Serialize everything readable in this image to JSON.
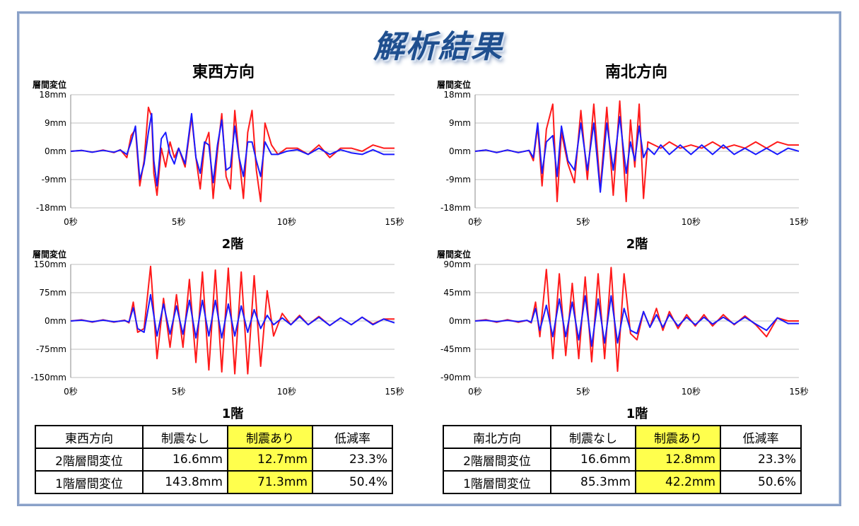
{
  "main_title": "解析結果",
  "panels": [
    {
      "direction": "東西方向",
      "table": {
        "headers": [
          "東西方向",
          "制震なし",
          "制震あり",
          "低減率"
        ],
        "rows": [
          [
            "2階層間変位",
            "16.6mm",
            "12.7mm",
            "23.3%"
          ],
          [
            "1階層間変位",
            "143.8mm",
            "71.3mm",
            "50.4%"
          ]
        ]
      }
    },
    {
      "direction": "南北方向",
      "table": {
        "headers": [
          "南北方向",
          "制震なし",
          "制震あり",
          "低減率"
        ],
        "rows": [
          [
            "2階層間変位",
            "16.6mm",
            "12.8mm",
            "23.3%"
          ],
          [
            "1階層間変位",
            "85.3mm",
            "42.2mm",
            "50.6%"
          ]
        ]
      }
    }
  ],
  "colors": {
    "no_damper": "#ff1a1a",
    "with_damper": "#1a1aff",
    "highlight": "#ffff4d",
    "title": "#1f4f8f"
  },
  "chart_data": [
    {
      "id": "ew-2f",
      "type": "line",
      "title": "2階",
      "ylabel": "層間変位",
      "ylim": [
        -18,
        18
      ],
      "xlim": [
        0,
        15
      ],
      "grid": true,
      "legend": "none",
      "yticks": [
        "18mm",
        "9mm",
        "0mm",
        "-9mm",
        "-18mm"
      ],
      "xticks": [
        "0秒",
        "5秒",
        "10秒",
        "15秒"
      ],
      "series": [
        {
          "color": "red",
          "x": [
            0,
            0.5,
            1,
            1.5,
            2,
            2.3,
            2.6,
            2.8,
            3.0,
            3.2,
            3.4,
            3.6,
            3.75,
            3.85,
            4.0,
            4.2,
            4.4,
            4.6,
            4.8,
            5.0,
            5.3,
            5.6,
            5.8,
            6.0,
            6.2,
            6.4,
            6.6,
            6.8,
            7.0,
            7.2,
            7.4,
            7.6,
            7.8,
            8.0,
            8.2,
            8.4,
            8.6,
            8.8,
            9.0,
            9.3,
            9.6,
            10,
            10.5,
            11,
            11.5,
            12,
            12.5,
            13,
            13.5,
            14,
            14.5,
            15
          ],
          "y": [
            0,
            0.3,
            -0.3,
            0.4,
            -0.4,
            0.5,
            -2,
            5,
            7,
            -11,
            -3,
            14,
            11,
            -7,
            -14,
            1,
            -5,
            3,
            -2,
            1,
            -5,
            11,
            -2,
            -12,
            2,
            6,
            -15,
            0,
            12,
            -8,
            -12,
            13,
            -2,
            -15,
            6,
            13,
            -6,
            -16,
            9,
            2,
            -1,
            1,
            1,
            -1,
            2,
            -2,
            1,
            1,
            0,
            2,
            1,
            1
          ]
        },
        {
          "color": "blue",
          "x": [
            0,
            0.5,
            1,
            1.5,
            2,
            2.3,
            2.6,
            2.8,
            3.0,
            3.2,
            3.4,
            3.6,
            3.75,
            3.85,
            4.0,
            4.2,
            4.4,
            4.6,
            4.8,
            5.0,
            5.3,
            5.6,
            5.8,
            6.0,
            6.2,
            6.4,
            6.6,
            6.8,
            7.0,
            7.2,
            7.4,
            7.6,
            7.8,
            8.0,
            8.2,
            8.4,
            8.6,
            8.8,
            9.0,
            9.3,
            9.6,
            10,
            10.5,
            11,
            11.5,
            12,
            12.5,
            13,
            13.5,
            14,
            14.5,
            15
          ],
          "y": [
            0,
            0.3,
            -0.3,
            0.3,
            -0.3,
            0.4,
            -1,
            3,
            8,
            -9,
            -4,
            6,
            12,
            -3,
            -11,
            4,
            6,
            -1,
            -4,
            1,
            -4,
            12,
            -2,
            -7,
            3,
            2,
            -10,
            2,
            10,
            -6,
            -5,
            8,
            -2,
            -8,
            3,
            3,
            -3,
            -8,
            3,
            -1,
            -1,
            0,
            0.5,
            -1,
            1,
            -1,
            0.5,
            -0.5,
            -1,
            0.5,
            -1,
            -1
          ]
        }
      ]
    },
    {
      "id": "ew-1f",
      "type": "line",
      "title": "1階",
      "ylabel": "層間変位",
      "ylim": [
        -150,
        150
      ],
      "xlim": [
        0,
        15
      ],
      "grid": true,
      "legend": "none",
      "yticks": [
        "150mm",
        "75mm",
        "0mm",
        "-75mm",
        "-150mm"
      ],
      "xticks": [
        "0秒",
        "5秒",
        "10秒",
        "15秒"
      ],
      "series": [
        {
          "color": "red",
          "x": [
            0,
            0.5,
            1,
            1.5,
            2,
            2.5,
            2.7,
            2.9,
            3.1,
            3.4,
            3.7,
            4.0,
            4.3,
            4.6,
            4.9,
            5.2,
            5.5,
            5.8,
            6.1,
            6.4,
            6.7,
            7.0,
            7.3,
            7.6,
            7.9,
            8.2,
            8.5,
            8.8,
            9.1,
            9.4,
            9.8,
            10.2,
            10.6,
            11,
            11.5,
            12,
            12.5,
            13,
            13.5,
            14,
            14.5,
            15
          ],
          "y": [
            0,
            3,
            -3,
            3,
            -3,
            2,
            -5,
            50,
            -30,
            -20,
            145,
            -100,
            60,
            -70,
            70,
            -70,
            110,
            -110,
            130,
            -130,
            135,
            -135,
            140,
            -140,
            130,
            -140,
            120,
            -120,
            80,
            -40,
            20,
            -10,
            15,
            -10,
            12,
            -12,
            8,
            -10,
            10,
            -8,
            5,
            5
          ]
        },
        {
          "color": "blue",
          "x": [
            0,
            0.5,
            1,
            1.5,
            2,
            2.5,
            2.7,
            2.9,
            3.1,
            3.4,
            3.7,
            4.0,
            4.3,
            4.6,
            4.9,
            5.2,
            5.5,
            5.8,
            6.1,
            6.4,
            6.7,
            7.0,
            7.3,
            7.6,
            7.9,
            8.2,
            8.5,
            8.8,
            9.1,
            9.4,
            9.8,
            10.2,
            10.6,
            11,
            11.5,
            12,
            12.5,
            13,
            13.5,
            14,
            14.5,
            15
          ],
          "y": [
            0,
            2,
            -2,
            2,
            -2,
            1,
            -3,
            35,
            -20,
            -30,
            70,
            -40,
            45,
            -35,
            40,
            -35,
            55,
            -45,
            55,
            -40,
            55,
            -45,
            45,
            -40,
            40,
            -30,
            30,
            -20,
            15,
            -10,
            8,
            -10,
            12,
            -10,
            10,
            -12,
            8,
            -10,
            10,
            -10,
            5,
            -5
          ]
        }
      ]
    },
    {
      "id": "ns-2f",
      "type": "line",
      "title": "2階",
      "ylabel": "層間変位",
      "ylim": [
        -18,
        18
      ],
      "xlim": [
        0,
        15
      ],
      "grid": true,
      "legend": "none",
      "yticks": [
        "18mm",
        "9mm",
        "0mm",
        "-9mm",
        "-18mm"
      ],
      "xticks": [
        "0秒",
        "5秒",
        "10秒",
        "15秒"
      ],
      "series": [
        {
          "color": "red",
          "x": [
            0,
            0.5,
            1,
            1.5,
            2,
            2.5,
            2.7,
            2.9,
            3.1,
            3.3,
            3.6,
            3.8,
            4.0,
            4.3,
            4.6,
            4.9,
            5.2,
            5.5,
            5.8,
            6.1,
            6.4,
            6.7,
            7.0,
            7.2,
            7.4,
            7.6,
            7.8,
            8.0,
            8.3,
            8.6,
            9,
            9.5,
            10,
            10.5,
            11,
            11.5,
            12,
            12.5,
            13,
            13.5,
            14,
            14.5,
            15
          ],
          "y": [
            0,
            0.4,
            -0.4,
            0.4,
            -0.4,
            0.3,
            -3,
            8,
            -11,
            7,
            15,
            -16,
            6,
            -4,
            -10,
            13,
            -9,
            15,
            -12,
            14,
            -14,
            16,
            -16,
            10,
            -5,
            15,
            -15,
            3,
            2,
            1,
            3,
            1,
            2,
            1,
            3,
            1,
            2,
            1,
            3,
            1,
            3,
            2,
            2
          ]
        },
        {
          "color": "blue",
          "x": [
            0,
            0.5,
            1,
            1.5,
            2,
            2.5,
            2.7,
            2.9,
            3.1,
            3.3,
            3.6,
            3.8,
            4.0,
            4.3,
            4.6,
            4.9,
            5.2,
            5.5,
            5.8,
            6.1,
            6.4,
            6.7,
            7.0,
            7.2,
            7.4,
            7.6,
            7.8,
            8.0,
            8.3,
            8.6,
            9,
            9.5,
            10,
            10.5,
            11,
            11.5,
            12,
            12.5,
            13,
            13.5,
            14,
            14.5,
            15
          ],
          "y": [
            0,
            0.4,
            -0.4,
            0.4,
            -0.4,
            0.3,
            -2,
            9,
            -7,
            3,
            5,
            -8,
            8,
            -3,
            -6,
            9,
            -6,
            9,
            -13,
            9,
            -6,
            11,
            -7,
            3,
            -3,
            8,
            -2,
            1,
            -1,
            2,
            -1,
            2,
            -1,
            2,
            -1,
            2,
            -1,
            1,
            -1,
            1,
            -1,
            1,
            0
          ]
        }
      ]
    },
    {
      "id": "ns-1f",
      "type": "line",
      "title": "1階",
      "ylabel": "層間変位",
      "ylim": [
        -90,
        90
      ],
      "xlim": [
        0,
        15
      ],
      "grid": true,
      "legend": "none",
      "yticks": [
        "90mm",
        "45mm",
        "0mm",
        "-45mm",
        "-90mm"
      ],
      "xticks": [
        "0秒",
        "5秒",
        "10秒",
        "15秒"
      ],
      "series": [
        {
          "color": "red",
          "x": [
            0,
            0.5,
            1,
            1.5,
            2,
            2.4,
            2.6,
            2.8,
            3.0,
            3.3,
            3.6,
            3.9,
            4.2,
            4.5,
            4.8,
            5.1,
            5.4,
            5.7,
            6.0,
            6.3,
            6.6,
            6.9,
            7.2,
            7.5,
            7.8,
            8.1,
            8.4,
            8.7,
            9.0,
            9.4,
            9.8,
            10.2,
            10.6,
            11,
            11.5,
            12,
            12.5,
            13,
            13.5,
            14,
            14.5,
            15
          ],
          "y": [
            0,
            2,
            -2,
            2,
            -2,
            1,
            -3,
            30,
            -25,
            82,
            -60,
            75,
            -55,
            60,
            -60,
            70,
            -65,
            75,
            -60,
            85,
            -80,
            75,
            -20,
            -30,
            15,
            -10,
            20,
            -15,
            15,
            -12,
            10,
            -8,
            10,
            -8,
            10,
            -6,
            8,
            -6,
            -25,
            5,
            0,
            0
          ]
        },
        {
          "color": "blue",
          "x": [
            0,
            0.5,
            1,
            1.5,
            2,
            2.4,
            2.6,
            2.8,
            3.0,
            3.3,
            3.6,
            3.9,
            4.2,
            4.5,
            4.8,
            5.1,
            5.4,
            5.7,
            6.0,
            6.3,
            6.6,
            6.9,
            7.2,
            7.5,
            7.8,
            8.1,
            8.4,
            8.7,
            9.0,
            9.4,
            9.8,
            10.2,
            10.6,
            11,
            11.5,
            12,
            12.5,
            13,
            13.5,
            14,
            14.5,
            15
          ],
          "y": [
            0,
            1,
            -1,
            1,
            -1,
            1,
            -2,
            20,
            -15,
            25,
            -25,
            35,
            -25,
            30,
            -30,
            40,
            -40,
            35,
            -35,
            40,
            -35,
            20,
            -15,
            -20,
            15,
            -10,
            10,
            -10,
            10,
            -8,
            6,
            -6,
            6,
            -5,
            6,
            -5,
            6,
            -5,
            -15,
            5,
            -4,
            -4
          ]
        }
      ]
    }
  ]
}
